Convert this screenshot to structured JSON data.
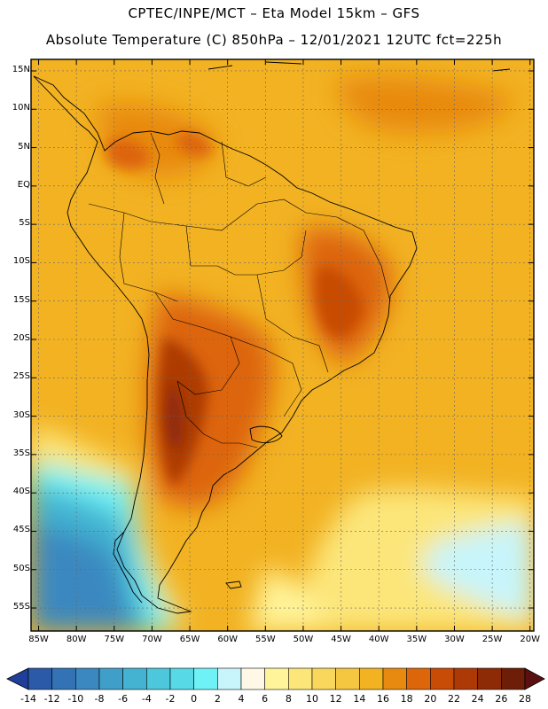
{
  "title_line1": "CPTEC/INPE/MCT –  Eta Model 15km – GFS",
  "title_line2": "Absolute Temperature (C) 850hPa – 12/01/2021 12UTC fct=225h",
  "lat_labels": [
    "15N",
    "10N",
    "5N",
    "EQ",
    "5S",
    "10S",
    "15S",
    "20S",
    "25S",
    "30S",
    "35S",
    "40S",
    "45S",
    "50S",
    "55S"
  ],
  "lon_labels": [
    "85W",
    "80W",
    "75W",
    "70W",
    "65W",
    "60W",
    "55W",
    "50W",
    "45W",
    "40W",
    "35W",
    "30W",
    "25W",
    "20W"
  ],
  "colorbar": {
    "labels": [
      "-14",
      "-12",
      "-10",
      "-8",
      "-6",
      "-4",
      "-2",
      "0",
      "2",
      "4",
      "6",
      "8",
      "10",
      "12",
      "14",
      "16",
      "18",
      "20",
      "22",
      "24",
      "26",
      "28"
    ],
    "colors": [
      "#1f3f9a",
      "#2a5aa8",
      "#3373b5",
      "#3b88c0",
      "#3f9fc9",
      "#43b3d1",
      "#4cc7dc",
      "#58d9e6",
      "#6ff2f5",
      "#c8f5fb",
      "#fff8e6",
      "#fff49a",
      "#fce67a",
      "#f9d75c",
      "#f5c640",
      "#f2b222",
      "#e88a10",
      "#dd650a",
      "#c84b06",
      "#ad3a06",
      "#8e2b07",
      "#6e1e08",
      "#5a1010"
    ]
  },
  "colors": {
    "warm_orange": "#f2b222",
    "hot_brown": "#ad3a06",
    "cold_blue": "#3b88c0"
  }
}
